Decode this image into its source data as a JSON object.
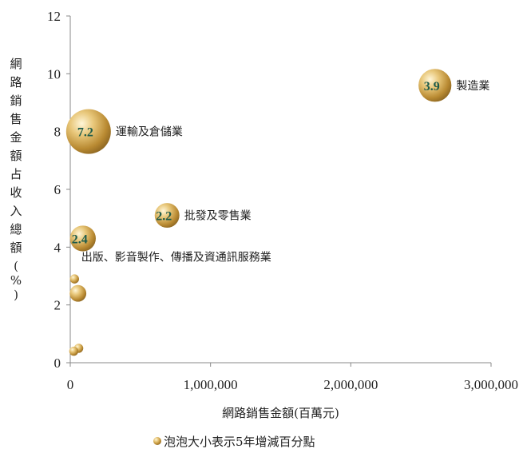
{
  "chart_data": {
    "type": "scatter",
    "subtype": "bubble",
    "xlabel": "網路銷售金額(百萬元)",
    "ylabel": "網路銷售金額占收入總額(%)",
    "xlim": [
      0,
      3000000
    ],
    "ylim": [
      0,
      12
    ],
    "xticks": [
      0,
      1000000,
      2000000,
      3000000
    ],
    "xtick_labels": [
      "0",
      "1,000,000",
      "2,000,000",
      "3,000,000"
    ],
    "yticks": [
      0,
      2,
      4,
      6,
      8,
      10,
      12
    ],
    "ytick_labels": [
      "0",
      "2",
      "4",
      "6",
      "8",
      "10",
      "12"
    ],
    "legend": "泡泡大小表示5年增減百分點",
    "legend_position": "bottom",
    "grid": false,
    "bubble_color": "#c9a04a",
    "label_color": "#1d5b4a",
    "points": [
      {
        "x": 2600000,
        "y": 9.6,
        "size": 3.9,
        "label": "3.9",
        "category": "製造業"
      },
      {
        "x": 130000,
        "y": 8.0,
        "size": 7.2,
        "label": "7.2",
        "category": "運輸及倉儲業"
      },
      {
        "x": 690000,
        "y": 5.1,
        "size": 2.2,
        "label": "2.2",
        "category": "批發及零售業"
      },
      {
        "x": 90000,
        "y": 4.3,
        "size": 2.4,
        "label": "2.4",
        "category": "出版、影音製作、傳播及資通訊服務業"
      },
      {
        "x": 55000,
        "y": 2.4,
        "size": 1.0
      },
      {
        "x": 30000,
        "y": 2.9,
        "size": 0.3
      },
      {
        "x": 60000,
        "y": 0.5,
        "size": 0.3
      },
      {
        "x": 25000,
        "y": 0.4,
        "size": 0.3
      }
    ]
  }
}
